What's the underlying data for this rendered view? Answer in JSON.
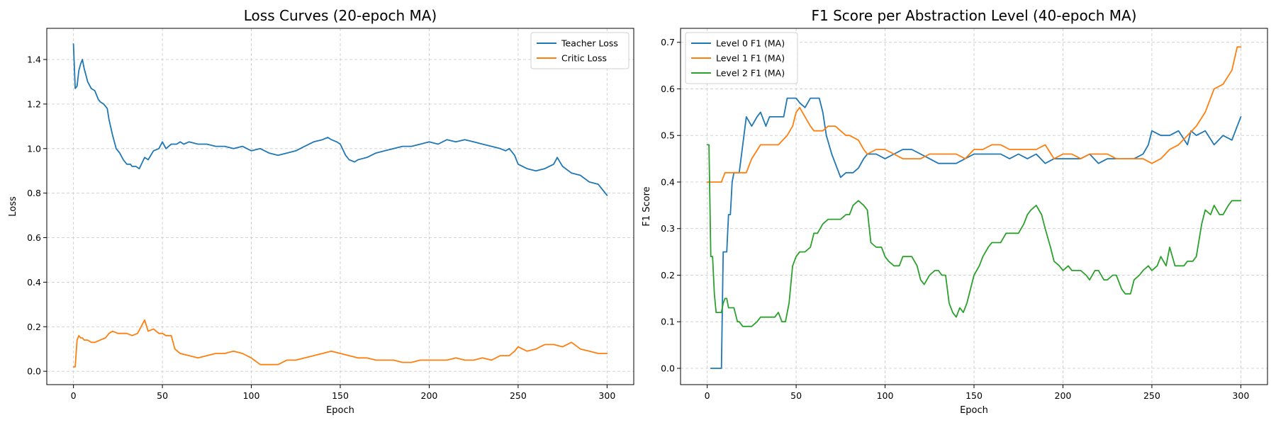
{
  "chart_data": [
    {
      "type": "line",
      "title": "Loss Curves (20-epoch MA)",
      "xlabel": "Epoch",
      "ylabel": "Loss",
      "xlim": [
        -15,
        315
      ],
      "ylim": [
        -0.06,
        1.54
      ],
      "xticks": [
        0,
        50,
        100,
        150,
        200,
        250,
        300
      ],
      "yticks": [
        0.0,
        0.2,
        0.4,
        0.6,
        0.8,
        1.0,
        1.2,
        1.4
      ],
      "ytick_format": 1,
      "grid": true,
      "legend_position": "top-right",
      "series": [
        {
          "name": "Teacher Loss",
          "color": "#1f77b4",
          "x": [
            0,
            1,
            2,
            3,
            4,
            5,
            6,
            8,
            10,
            12,
            14,
            15,
            17,
            19,
            20,
            22,
            24,
            26,
            28,
            30,
            32,
            33,
            35,
            37,
            40,
            42,
            45,
            48,
            50,
            52,
            55,
            58,
            60,
            62,
            65,
            70,
            75,
            80,
            85,
            90,
            95,
            100,
            105,
            110,
            115,
            120,
            125,
            130,
            135,
            140,
            143,
            145,
            148,
            150,
            153,
            155,
            158,
            160,
            165,
            170,
            175,
            180,
            185,
            190,
            195,
            200,
            205,
            210,
            215,
            220,
            225,
            230,
            235,
            240,
            243,
            245,
            248,
            250,
            255,
            260,
            265,
            270,
            272,
            275,
            280,
            285,
            290,
            295,
            300
          ],
          "y": [
            1.47,
            1.27,
            1.28,
            1.35,
            1.38,
            1.4,
            1.36,
            1.3,
            1.27,
            1.26,
            1.22,
            1.21,
            1.2,
            1.18,
            1.13,
            1.06,
            1.0,
            0.98,
            0.95,
            0.93,
            0.93,
            0.92,
            0.92,
            0.91,
            0.96,
            0.95,
            0.99,
            1.0,
            1.03,
            1.0,
            1.02,
            1.02,
            1.03,
            1.02,
            1.03,
            1.02,
            1.02,
            1.01,
            1.01,
            1.0,
            1.01,
            0.99,
            1.0,
            0.98,
            0.97,
            0.98,
            0.99,
            1.01,
            1.03,
            1.04,
            1.05,
            1.04,
            1.03,
            1.02,
            0.97,
            0.95,
            0.94,
            0.95,
            0.96,
            0.98,
            0.99,
            1.0,
            1.01,
            1.01,
            1.02,
            1.03,
            1.02,
            1.04,
            1.03,
            1.04,
            1.03,
            1.02,
            1.01,
            1.0,
            0.99,
            1.0,
            0.97,
            0.93,
            0.91,
            0.9,
            0.91,
            0.93,
            0.96,
            0.92,
            0.89,
            0.88,
            0.85,
            0.84,
            0.79
          ]
        },
        {
          "name": "Critic Loss",
          "color": "#ff7f0e",
          "x": [
            0,
            1,
            2,
            3,
            4,
            5,
            6,
            8,
            10,
            12,
            15,
            18,
            20,
            22,
            25,
            28,
            30,
            33,
            36,
            38,
            40,
            42,
            45,
            48,
            50,
            52,
            55,
            57,
            60,
            65,
            70,
            75,
            80,
            85,
            90,
            95,
            100,
            105,
            110,
            115,
            120,
            125,
            130,
            135,
            140,
            145,
            150,
            155,
            160,
            165,
            170,
            175,
            180,
            185,
            190,
            195,
            200,
            205,
            210,
            215,
            220,
            225,
            230,
            235,
            240,
            245,
            248,
            250,
            255,
            260,
            265,
            270,
            275,
            280,
            285,
            290,
            295,
            300
          ],
          "y": [
            0.02,
            0.02,
            0.14,
            0.16,
            0.15,
            0.15,
            0.14,
            0.14,
            0.13,
            0.13,
            0.14,
            0.15,
            0.17,
            0.18,
            0.17,
            0.17,
            0.17,
            0.16,
            0.17,
            0.2,
            0.23,
            0.18,
            0.19,
            0.17,
            0.17,
            0.16,
            0.16,
            0.1,
            0.08,
            0.07,
            0.06,
            0.07,
            0.08,
            0.08,
            0.09,
            0.08,
            0.06,
            0.03,
            0.03,
            0.03,
            0.05,
            0.05,
            0.06,
            0.07,
            0.08,
            0.09,
            0.08,
            0.07,
            0.06,
            0.06,
            0.05,
            0.05,
            0.05,
            0.04,
            0.04,
            0.05,
            0.05,
            0.05,
            0.05,
            0.06,
            0.05,
            0.05,
            0.06,
            0.05,
            0.07,
            0.07,
            0.09,
            0.11,
            0.09,
            0.1,
            0.12,
            0.12,
            0.11,
            0.13,
            0.1,
            0.09,
            0.08,
            0.08
          ]
        }
      ]
    },
    {
      "type": "line",
      "title": "F1 Score per Abstraction Level (40-epoch MA)",
      "xlabel": "Epoch",
      "ylabel": "F1 Score",
      "xlim": [
        -15,
        315
      ],
      "ylim": [
        -0.035,
        0.73
      ],
      "xticks": [
        0,
        50,
        100,
        150,
        200,
        250,
        300
      ],
      "yticks": [
        0.0,
        0.1,
        0.2,
        0.3,
        0.4,
        0.5,
        0.6,
        0.7
      ],
      "ytick_format": 1,
      "grid": true,
      "legend_position": "top-left",
      "series": [
        {
          "name": "Level 0 F1 (MA)",
          "color": "#1f77b4",
          "x": [
            2,
            3,
            4,
            5,
            6,
            7,
            8,
            9,
            10,
            11,
            12,
            13,
            14,
            15,
            16,
            18,
            20,
            22,
            25,
            28,
            30,
            33,
            35,
            38,
            40,
            43,
            45,
            48,
            50,
            52,
            55,
            58,
            60,
            63,
            65,
            67,
            70,
            72,
            75,
            78,
            80,
            82,
            85,
            88,
            90,
            95,
            100,
            105,
            110,
            115,
            120,
            125,
            130,
            135,
            140,
            145,
            150,
            155,
            160,
            165,
            170,
            175,
            180,
            185,
            190,
            195,
            200,
            205,
            210,
            215,
            220,
            225,
            230,
            235,
            240,
            245,
            248,
            250,
            255,
            260,
            265,
            270,
            272,
            275,
            280,
            285,
            290,
            295,
            298,
            300
          ],
          "y": [
            0.0,
            0.0,
            0.0,
            0.0,
            0.0,
            0.0,
            0.0,
            0.25,
            0.25,
            0.25,
            0.33,
            0.33,
            0.4,
            0.42,
            0.42,
            0.42,
            0.48,
            0.54,
            0.52,
            0.54,
            0.55,
            0.52,
            0.54,
            0.54,
            0.54,
            0.54,
            0.58,
            0.58,
            0.58,
            0.57,
            0.56,
            0.58,
            0.58,
            0.58,
            0.55,
            0.5,
            0.46,
            0.44,
            0.41,
            0.42,
            0.42,
            0.42,
            0.43,
            0.45,
            0.46,
            0.46,
            0.45,
            0.46,
            0.47,
            0.47,
            0.46,
            0.45,
            0.44,
            0.44,
            0.44,
            0.45,
            0.46,
            0.46,
            0.46,
            0.46,
            0.45,
            0.46,
            0.45,
            0.46,
            0.44,
            0.45,
            0.45,
            0.45,
            0.45,
            0.46,
            0.44,
            0.45,
            0.45,
            0.45,
            0.45,
            0.46,
            0.48,
            0.51,
            0.5,
            0.5,
            0.51,
            0.48,
            0.51,
            0.5,
            0.51,
            0.48,
            0.5,
            0.49,
            0.52,
            0.54
          ]
        },
        {
          "name": "Level 1 F1 (MA)",
          "color": "#ff7f0e",
          "x": [
            0,
            2,
            5,
            8,
            10,
            12,
            15,
            18,
            20,
            22,
            25,
            30,
            35,
            40,
            45,
            48,
            50,
            52,
            55,
            58,
            60,
            63,
            65,
            68,
            70,
            72,
            75,
            78,
            80,
            85,
            88,
            90,
            95,
            100,
            105,
            110,
            115,
            120,
            125,
            130,
            135,
            140,
            145,
            150,
            155,
            160,
            165,
            170,
            175,
            180,
            185,
            190,
            195,
            200,
            205,
            210,
            215,
            220,
            225,
            230,
            235,
            240,
            245,
            250,
            255,
            260,
            265,
            270,
            275,
            280,
            285,
            290,
            295,
            298,
            300
          ],
          "y": [
            0.4,
            0.4,
            0.4,
            0.4,
            0.42,
            0.42,
            0.42,
            0.42,
            0.42,
            0.42,
            0.45,
            0.48,
            0.48,
            0.48,
            0.5,
            0.52,
            0.55,
            0.56,
            0.54,
            0.52,
            0.51,
            0.51,
            0.51,
            0.52,
            0.52,
            0.52,
            0.51,
            0.5,
            0.5,
            0.49,
            0.47,
            0.46,
            0.47,
            0.47,
            0.46,
            0.45,
            0.45,
            0.45,
            0.46,
            0.46,
            0.46,
            0.46,
            0.45,
            0.47,
            0.47,
            0.48,
            0.48,
            0.47,
            0.47,
            0.47,
            0.47,
            0.48,
            0.45,
            0.46,
            0.46,
            0.45,
            0.46,
            0.46,
            0.46,
            0.45,
            0.45,
            0.45,
            0.45,
            0.44,
            0.45,
            0.47,
            0.48,
            0.5,
            0.52,
            0.55,
            0.6,
            0.61,
            0.64,
            0.69,
            0.69
          ]
        },
        {
          "name": "Level 2 F1 (MA)",
          "color": "#2ca02c",
          "x": [
            0,
            1,
            2,
            3,
            4,
            5,
            6,
            7,
            8,
            9,
            10,
            11,
            12,
            13,
            15,
            17,
            18,
            20,
            22,
            25,
            28,
            30,
            33,
            35,
            38,
            40,
            42,
            44,
            46,
            48,
            50,
            52,
            55,
            58,
            60,
            62,
            65,
            68,
            70,
            73,
            75,
            78,
            80,
            82,
            85,
            88,
            90,
            92,
            95,
            98,
            100,
            102,
            105,
            108,
            110,
            112,
            115,
            118,
            120,
            122,
            125,
            128,
            130,
            132,
            134,
            136,
            138,
            140,
            142,
            144,
            146,
            150,
            153,
            155,
            158,
            160,
            163,
            165,
            168,
            170,
            173,
            175,
            178,
            180,
            182,
            185,
            188,
            190,
            193,
            195,
            198,
            200,
            203,
            205,
            208,
            210,
            213,
            215,
            218,
            220,
            223,
            225,
            228,
            230,
            233,
            235,
            238,
            240,
            243,
            245,
            248,
            250,
            253,
            255,
            258,
            260,
            263,
            265,
            268,
            270,
            273,
            275,
            278,
            280,
            283,
            285,
            288,
            290,
            293,
            295,
            298,
            300
          ],
          "y": [
            0.48,
            0.48,
            0.24,
            0.24,
            0.16,
            0.12,
            0.12,
            0.12,
            0.12,
            0.14,
            0.15,
            0.15,
            0.13,
            0.13,
            0.13,
            0.1,
            0.1,
            0.09,
            0.09,
            0.09,
            0.1,
            0.11,
            0.11,
            0.11,
            0.11,
            0.12,
            0.1,
            0.1,
            0.14,
            0.22,
            0.24,
            0.25,
            0.25,
            0.26,
            0.29,
            0.29,
            0.31,
            0.32,
            0.32,
            0.32,
            0.32,
            0.33,
            0.33,
            0.35,
            0.36,
            0.35,
            0.34,
            0.27,
            0.26,
            0.26,
            0.24,
            0.23,
            0.22,
            0.22,
            0.24,
            0.24,
            0.24,
            0.22,
            0.19,
            0.18,
            0.2,
            0.21,
            0.21,
            0.2,
            0.2,
            0.14,
            0.12,
            0.11,
            0.13,
            0.12,
            0.14,
            0.2,
            0.22,
            0.24,
            0.26,
            0.27,
            0.27,
            0.27,
            0.29,
            0.29,
            0.29,
            0.29,
            0.31,
            0.33,
            0.34,
            0.35,
            0.33,
            0.3,
            0.26,
            0.23,
            0.22,
            0.21,
            0.22,
            0.21,
            0.21,
            0.21,
            0.2,
            0.19,
            0.21,
            0.21,
            0.19,
            0.19,
            0.2,
            0.2,
            0.17,
            0.16,
            0.16,
            0.19,
            0.2,
            0.21,
            0.22,
            0.21,
            0.22,
            0.24,
            0.22,
            0.26,
            0.22,
            0.22,
            0.22,
            0.23,
            0.23,
            0.24,
            0.31,
            0.34,
            0.33,
            0.35,
            0.33,
            0.33,
            0.35,
            0.36,
            0.36,
            0.36
          ]
        }
      ]
    }
  ]
}
